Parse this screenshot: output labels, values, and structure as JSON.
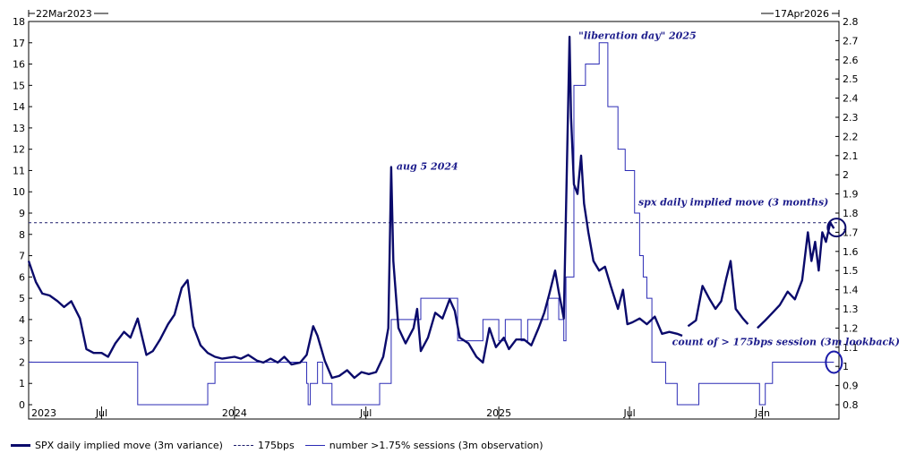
{
  "header": {
    "start_date": "22Mar2023",
    "end_date": "17Apr2026"
  },
  "colors": {
    "implied": "#0a0a6b",
    "threshold": "#1c1c6c",
    "count": "#2b2bb5",
    "annotation": "#1c1c8c",
    "marker": "#1a1aa8"
  },
  "chart_data": {
    "type": "line",
    "x_range": [
      "2023-03-22",
      "2026-04-17"
    ],
    "x_ticks": [
      {
        "date": "2023-03-22",
        "label": "2023"
      },
      {
        "date": "2023-07-01",
        "label": "Jul"
      },
      {
        "date": "2024-01-01",
        "label": "2024"
      },
      {
        "date": "2024-07-01",
        "label": "Jul"
      },
      {
        "date": "2025-01-01",
        "label": "2025"
      },
      {
        "date": "2025-07-01",
        "label": "Jul"
      },
      {
        "date": "2026-01-01",
        "label": "Jan"
      }
    ],
    "left_axis": {
      "ylim": [
        0,
        18
      ],
      "ticks": [
        0,
        1,
        2,
        3,
        4,
        5,
        6,
        7,
        8,
        9,
        10,
        11,
        12,
        13,
        14,
        15,
        16,
        17,
        18
      ]
    },
    "right_axis": {
      "ylim": [
        0.8,
        2.8
      ],
      "ticks": [
        "0.8",
        "0.9",
        "1",
        "1.1",
        "1.2",
        "1.3",
        "1.4",
        "1.5",
        "1.6",
        "1.7",
        "1.8",
        "1.9",
        "2",
        "2.1",
        "2.2",
        "2.3",
        "2.4",
        "2.5",
        "2.6",
        "2.7",
        "2.8"
      ],
      "labelled_from": 0.8
    },
    "grid": false,
    "legend_position": "bottom",
    "series": [
      {
        "name": "SPX daily implied move (3m variance)",
        "axis": "right",
        "points": [
          [
            "2023-03-22",
            1.55
          ],
          [
            "2023-04-01",
            1.44
          ],
          [
            "2023-04-10",
            1.38
          ],
          [
            "2023-04-20",
            1.37
          ],
          [
            "2023-05-01",
            1.34
          ],
          [
            "2023-05-10",
            1.31
          ],
          [
            "2023-05-20",
            1.34
          ],
          [
            "2023-06-01",
            1.25
          ],
          [
            "2023-06-10",
            1.09
          ],
          [
            "2023-06-20",
            1.07
          ],
          [
            "2023-07-01",
            1.07
          ],
          [
            "2023-07-10",
            1.05
          ],
          [
            "2023-07-20",
            1.12
          ],
          [
            "2023-08-01",
            1.18
          ],
          [
            "2023-08-10",
            1.15
          ],
          [
            "2023-08-20",
            1.25
          ],
          [
            "2023-09-01",
            1.06
          ],
          [
            "2023-09-10",
            1.08
          ],
          [
            "2023-09-20",
            1.14
          ],
          [
            "2023-10-01",
            1.22
          ],
          [
            "2023-10-10",
            1.27
          ],
          [
            "2023-10-20",
            1.41
          ],
          [
            "2023-10-28",
            1.45
          ],
          [
            "2023-11-05",
            1.21
          ],
          [
            "2023-11-15",
            1.11
          ],
          [
            "2023-11-25",
            1.07
          ],
          [
            "2023-12-05",
            1.05
          ],
          [
            "2023-12-15",
            1.04
          ],
          [
            "2024-01-01",
            1.05
          ],
          [
            "2024-01-10",
            1.04
          ],
          [
            "2024-01-20",
            1.06
          ],
          [
            "2024-02-01",
            1.03
          ],
          [
            "2024-02-10",
            1.02
          ],
          [
            "2024-02-20",
            1.04
          ],
          [
            "2024-03-01",
            1.02
          ],
          [
            "2024-03-10",
            1.05
          ],
          [
            "2024-03-20",
            1.01
          ],
          [
            "2024-04-01",
            1.02
          ],
          [
            "2024-04-10",
            1.06
          ],
          [
            "2024-04-19",
            1.21
          ],
          [
            "2024-04-25",
            1.16
          ],
          [
            "2024-05-05",
            1.03
          ],
          [
            "2024-05-15",
            0.94
          ],
          [
            "2024-05-25",
            0.95
          ],
          [
            "2024-06-05",
            0.98
          ],
          [
            "2024-06-15",
            0.94
          ],
          [
            "2024-06-25",
            0.97
          ],
          [
            "2024-07-05",
            0.96
          ],
          [
            "2024-07-15",
            0.97
          ],
          [
            "2024-07-25",
            1.05
          ],
          [
            "2024-08-01",
            1.2
          ],
          [
            "2024-08-05",
            2.04
          ],
          [
            "2024-08-08",
            1.55
          ],
          [
            "2024-08-15",
            1.2
          ],
          [
            "2024-08-25",
            1.12
          ],
          [
            "2024-09-05",
            1.2
          ],
          [
            "2024-09-10",
            1.3
          ],
          [
            "2024-09-15",
            1.08
          ],
          [
            "2024-09-25",
            1.15
          ],
          [
            "2024-10-05",
            1.28
          ],
          [
            "2024-10-15",
            1.25
          ],
          [
            "2024-10-25",
            1.35
          ],
          [
            "2024-11-01",
            1.29
          ],
          [
            "2024-11-08",
            1.15
          ],
          [
            "2024-11-20",
            1.12
          ],
          [
            "2024-12-01",
            1.05
          ],
          [
            "2024-12-10",
            1.02
          ],
          [
            "2024-12-19",
            1.2
          ],
          [
            "2024-12-28",
            1.1
          ],
          [
            "2025-01-08",
            1.15
          ],
          [
            "2025-01-15",
            1.09
          ],
          [
            "2025-01-25",
            1.14
          ],
          [
            "2025-02-05",
            1.14
          ],
          [
            "2025-02-15",
            1.11
          ],
          [
            "2025-02-25",
            1.2
          ],
          [
            "2025-03-05",
            1.28
          ],
          [
            "2025-03-12",
            1.38
          ],
          [
            "2025-03-20",
            1.5
          ],
          [
            "2025-03-25",
            1.39
          ],
          [
            "2025-04-01",
            1.25
          ],
          [
            "2025-04-07",
            2.35
          ],
          [
            "2025-04-09",
            2.72
          ],
          [
            "2025-04-11",
            2.3
          ],
          [
            "2025-04-15",
            1.95
          ],
          [
            "2025-04-20",
            1.9
          ],
          [
            "2025-04-25",
            2.1
          ],
          [
            "2025-04-29",
            1.85
          ],
          [
            "2025-05-05",
            1.7
          ],
          [
            "2025-05-12",
            1.55
          ],
          [
            "2025-05-20",
            1.5
          ],
          [
            "2025-05-28",
            1.52
          ],
          [
            "2025-06-05",
            1.42
          ],
          [
            "2025-06-15",
            1.3
          ],
          [
            "2025-06-22",
            1.4
          ],
          [
            "2025-06-28",
            1.22
          ],
          [
            "2025-07-05",
            1.23
          ],
          [
            "2025-07-15",
            1.25
          ],
          [
            "2025-07-25",
            1.22
          ],
          [
            "2025-08-05",
            1.26
          ],
          [
            "2025-08-15",
            1.17
          ],
          [
            "2025-08-25",
            1.18
          ],
          [
            "2025-09-05",
            1.17
          ],
          [
            "2025-09-12",
            1.16
          ],
          [
            null,
            null
          ],
          [
            "2025-09-20",
            1.21
          ],
          [
            "2025-10-01",
            1.24
          ],
          [
            "2025-10-10",
            1.42
          ],
          [
            "2025-10-20",
            1.35
          ],
          [
            "2025-10-28",
            1.3
          ],
          [
            "2025-11-05",
            1.34
          ],
          [
            "2025-11-12",
            1.46
          ],
          [
            "2025-11-18",
            1.55
          ],
          [
            "2025-11-25",
            1.3
          ],
          [
            "2025-12-05",
            1.25
          ],
          [
            "2025-12-12",
            1.22
          ],
          [
            null,
            null
          ],
          [
            "2025-12-25",
            1.2
          ],
          [
            "2026-01-05",
            1.24
          ],
          [
            "2026-01-15",
            1.28
          ],
          [
            "2026-01-25",
            1.32
          ],
          [
            "2026-02-05",
            1.39
          ],
          [
            "2026-02-15",
            1.35
          ],
          [
            "2026-02-25",
            1.45
          ],
          [
            "2026-03-05",
            1.7
          ],
          [
            "2026-03-10",
            1.55
          ],
          [
            "2026-03-15",
            1.65
          ],
          [
            "2026-03-20",
            1.5
          ],
          [
            "2026-03-25",
            1.7
          ],
          [
            "2026-03-30",
            1.65
          ],
          [
            "2026-04-05",
            1.75
          ],
          [
            "2026-04-10",
            1.72
          ]
        ]
      },
      {
        "name": "175bps",
        "axis": "right",
        "value": 1.75
      },
      {
        "name": "number >1.75% sessions (3m observation)",
        "axis": "left",
        "step_points": [
          [
            "2023-03-22",
            2
          ],
          [
            "2023-08-20",
            0
          ],
          [
            "2023-11-25",
            1
          ],
          [
            "2023-12-05",
            2
          ],
          [
            "2024-04-10",
            1
          ],
          [
            "2024-04-12",
            0
          ],
          [
            "2024-04-15",
            1
          ],
          [
            "2024-04-25",
            2
          ],
          [
            "2024-05-02",
            1
          ],
          [
            "2024-05-15",
            0
          ],
          [
            "2024-07-10",
            0
          ],
          [
            "2024-07-20",
            1
          ],
          [
            "2024-08-05",
            4
          ],
          [
            "2024-09-15",
            5
          ],
          [
            "2024-11-05",
            3
          ],
          [
            "2024-12-10",
            4
          ],
          [
            "2025-01-01",
            3
          ],
          [
            "2025-01-10",
            4
          ],
          [
            "2025-02-01",
            3
          ],
          [
            "2025-02-10",
            4
          ],
          [
            "2025-02-25",
            4
          ],
          [
            "2025-03-10",
            5
          ],
          [
            "2025-03-25",
            4
          ],
          [
            "2025-04-01",
            3
          ],
          [
            "2025-04-04",
            6
          ],
          [
            "2025-04-15",
            15
          ],
          [
            "2025-05-01",
            16
          ],
          [
            "2025-05-20",
            17
          ],
          [
            "2025-06-01",
            14
          ],
          [
            "2025-06-15",
            12
          ],
          [
            "2025-06-25",
            11
          ],
          [
            "2025-07-08",
            9
          ],
          [
            "2025-07-15",
            7
          ],
          [
            "2025-07-20",
            6
          ],
          [
            "2025-07-25",
            5
          ],
          [
            "2025-08-01",
            2
          ],
          [
            "2025-08-20",
            1
          ],
          [
            "2025-09-05",
            0
          ],
          [
            "2025-10-05",
            1
          ],
          [
            "2025-12-28",
            0
          ],
          [
            "2026-01-05",
            1
          ],
          [
            "2026-01-15",
            2
          ]
        ]
      }
    ],
    "annotations": [
      {
        "text": "aug 5 2024",
        "date": "2024-08-05",
        "value": 11.2,
        "axis": "left"
      },
      {
        "text": "\"liberation day\" 2025",
        "date": "2025-04-09",
        "value": 17.3,
        "axis": "left"
      },
      {
        "text": "spx daily implied move (3 months)",
        "date": "2026-04-10",
        "value": 9.6,
        "axis": "left"
      },
      {
        "text": "count of > 175bps session (3m lookback)",
        "date": "2026-04-10",
        "value": 3.0,
        "axis": "left"
      }
    ]
  },
  "legend": {
    "items": [
      {
        "label": "SPX daily implied move (3m variance)",
        "style": "thick"
      },
      {
        "label": "175bps",
        "style": "dashed"
      },
      {
        "label": "number >1.75% sessions (3m observation)",
        "style": "thin"
      }
    ]
  }
}
